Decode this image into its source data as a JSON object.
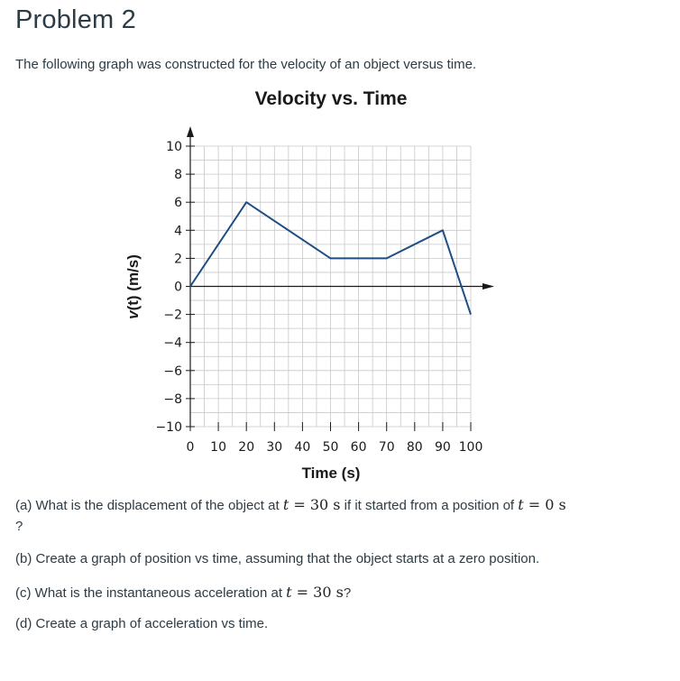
{
  "page": {
    "title": "Problem 2",
    "intro": "The following graph was constructed for the velocity of an object versus time."
  },
  "chart_data": {
    "type": "line",
    "title": "Velocity vs. Time",
    "xlabel": "Time (s)",
    "ylabel_parts": {
      "var": "v",
      "arg": "(t)",
      "unit": " (m/s)"
    },
    "xlim": [
      0,
      100
    ],
    "ylim": [
      -10,
      10
    ],
    "x_ticks": [
      0,
      10,
      20,
      30,
      40,
      50,
      60,
      70,
      80,
      90,
      100
    ],
    "y_ticks": [
      10,
      8,
      6,
      4,
      2,
      0,
      -2,
      -4,
      -6,
      -8,
      -10
    ],
    "y_tick_labels": [
      "10",
      "8",
      "6",
      "4",
      "2",
      "0",
      "−2",
      "−4",
      "−6",
      "−8",
      "−10"
    ],
    "grid": true,
    "line_color": "#1f4e85",
    "series": [
      {
        "x": [
          0,
          20,
          50,
          70,
          90,
          100
        ],
        "y": [
          0,
          6,
          2,
          2,
          4,
          -2
        ]
      }
    ]
  },
  "questions": {
    "a": {
      "prefix": "(a) What is the displacement of the object at ",
      "var1": "t",
      "eq1": " = 30 s",
      "middle": " if it started from a position of ",
      "var2": "t",
      "eq2": " = 0 s",
      "end": "?"
    },
    "b": {
      "text": "(b) Create a graph of position vs time, assuming that the object starts at a zero position."
    },
    "c": {
      "prefix": "(c) What is the instantaneous acceleration at ",
      "var": "t",
      "eq": " = 30 s",
      "end": "?"
    },
    "d": {
      "text": "(d) Create a graph of acceleration vs time."
    }
  }
}
